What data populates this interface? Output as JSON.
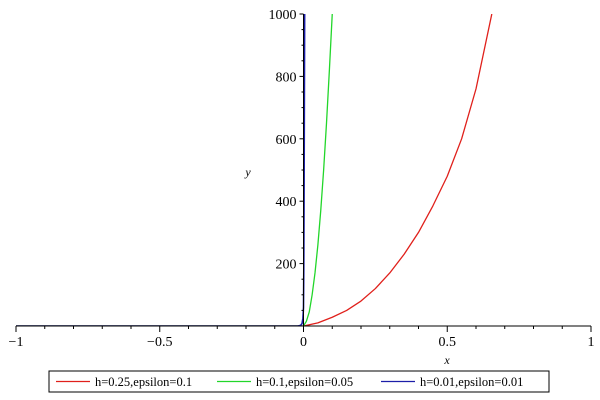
{
  "chart_data": {
    "type": "line",
    "title": "",
    "xlabel": "x",
    "ylabel": "y",
    "xlim": [
      -1,
      1
    ],
    "ylim": [
      0,
      1000
    ],
    "x_ticks": [
      -1,
      -0.5,
      0,
      0.5,
      1
    ],
    "x_tick_labels": [
      "−1",
      "−0.5",
      "0",
      "0.5",
      "1"
    ],
    "y_ticks": [
      200,
      400,
      600,
      800,
      1000
    ],
    "y_tick_labels": [
      "200",
      "400",
      "600",
      "800",
      "1000"
    ],
    "grid": false,
    "legend_position": "bottom",
    "series": [
      {
        "name": "h=0.25,epsilon=0.1",
        "color": "#e0201b",
        "x": [
          -1,
          -0.5,
          -0.05,
          0,
          0.05,
          0.1,
          0.15,
          0.2,
          0.25,
          0.3,
          0.35,
          0.4,
          0.45,
          0.5,
          0.55,
          0.6,
          0.655
        ],
        "y": [
          0,
          0,
          0,
          0,
          10,
          28,
          50,
          80,
          120,
          170,
          230,
          300,
          385,
          480,
          600,
          760,
          1000
        ]
      },
      {
        "name": "h=0.1,epsilon=0.05",
        "color": "#22d62a",
        "x": [
          -1,
          -0.5,
          -0.02,
          0,
          0.01,
          0.02,
          0.03,
          0.04,
          0.05,
          0.06,
          0.07,
          0.08,
          0.09,
          0.1
        ],
        "y": [
          0,
          0,
          0,
          0,
          15,
          45,
          100,
          170,
          260,
          370,
          500,
          650,
          820,
          1000
        ]
      },
      {
        "name": "h=0.01,epsilon=0.01",
        "color": "#1c1ea8",
        "x": [
          -1,
          -0.5,
          -0.02,
          -0.01,
          -0.005,
          -0.002,
          0,
          0.001,
          0.002,
          0.003,
          0.004
        ],
        "y": [
          0,
          0,
          0,
          2,
          8,
          25,
          60,
          180,
          400,
          700,
          1000
        ]
      }
    ]
  }
}
